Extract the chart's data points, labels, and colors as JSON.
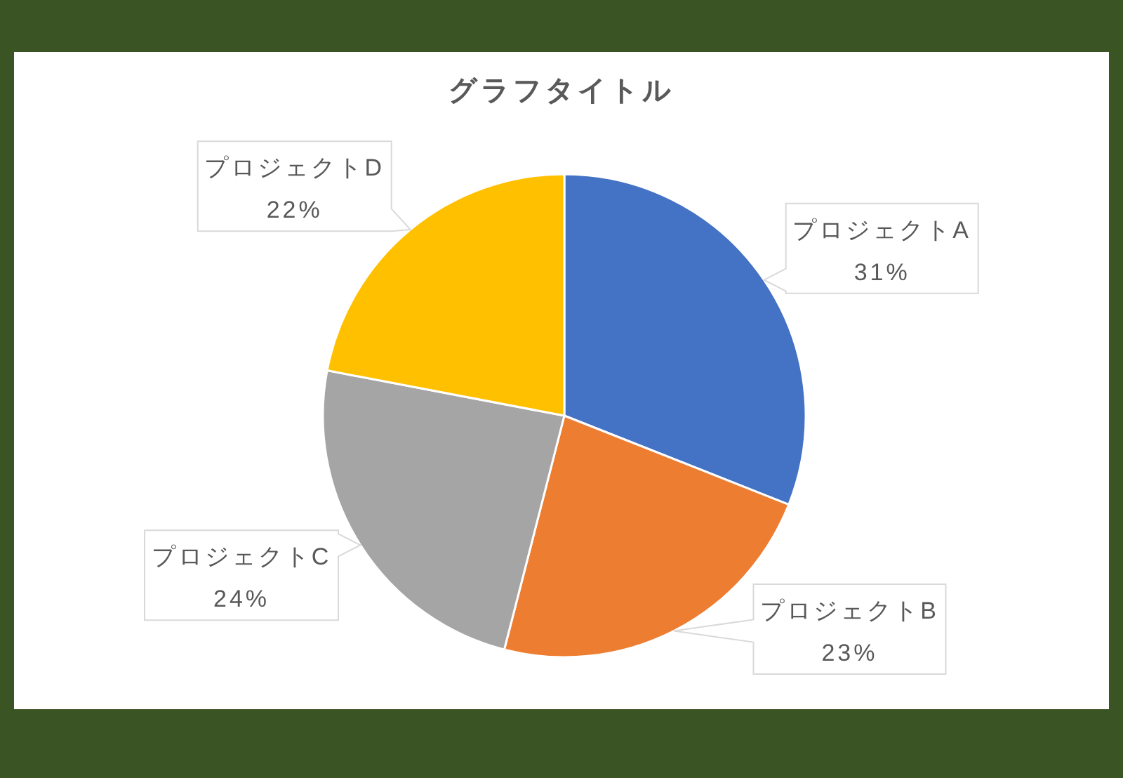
{
  "chart_data": {
    "type": "pie",
    "title": "グラフタイトル",
    "categories": [
      "プロジェクトA",
      "プロジェクトB",
      "プロジェクトC",
      "プロジェクトD"
    ],
    "values": [
      31,
      23,
      24,
      22
    ],
    "colors": [
      "#4472c4",
      "#ed7d31",
      "#a5a5a5",
      "#ffc000"
    ],
    "value_labels": [
      "31%",
      "23%",
      "24%",
      "22%"
    ]
  }
}
